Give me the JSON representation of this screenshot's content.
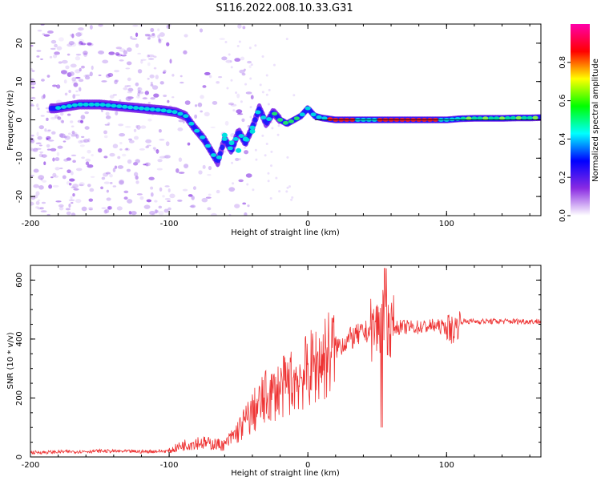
{
  "title": "S116.2022.008.10.33.G31",
  "chart_data": [
    {
      "type": "heatmap",
      "xlabel": "Height of straight line (km)",
      "ylabel": "Frequency (Hz)",
      "xlim": [
        -200,
        168
      ],
      "ylim": [
        -25,
        25
      ],
      "x_ticks": [
        -200,
        -100,
        0,
        100
      ],
      "y_ticks": [
        -20,
        -10,
        0,
        10,
        20
      ],
      "colorbar": {
        "label": "Normalized spectral amplitude",
        "range": [
          0,
          1
        ],
        "ticks": [
          "0.0",
          "0.2",
          "0.4",
          "0.6",
          "0.8"
        ],
        "colors": [
          "#ffffff",
          "#8a2be2",
          "#0000ff",
          "#00ffff",
          "#00ff00",
          "#ffff00",
          "#ff0000",
          "#ff00aa"
        ]
      },
      "trace": {
        "description_points_x": [
          -182,
          -165,
          -150,
          -135,
          -120,
          -105,
          -95,
          -88,
          -82,
          -75,
          -70,
          -65,
          -60,
          -55,
          -50,
          -45,
          -40,
          -35,
          -30,
          -25,
          -20,
          -15,
          -10,
          -5,
          0,
          5,
          10,
          20,
          30,
          40,
          50,
          60,
          70,
          80,
          90,
          100,
          110,
          120,
          130,
          140,
          150,
          160,
          168
        ],
        "description_points_y": [
          3,
          4,
          4,
          3.5,
          3,
          2.5,
          2,
          1,
          -2,
          -5,
          -8,
          -11,
          -5,
          -8,
          -3,
          -6,
          -2,
          3,
          -1,
          2,
          0,
          -1,
          0,
          1,
          3,
          1,
          0.5,
          0,
          0,
          0,
          0,
          0,
          0,
          0,
          0,
          0,
          0.3,
          0.4,
          0.4,
          0.4,
          0.5,
          0.5,
          0.6
        ]
      }
    },
    {
      "type": "line",
      "xlabel": "Height of straight line (km)",
      "ylabel": "SNR (10 * v/v)",
      "xlim": [
        -200,
        168
      ],
      "ylim": [
        0,
        650
      ],
      "x_ticks": [
        -200,
        -100,
        0,
        100
      ],
      "y_ticks": [
        0,
        200,
        400,
        600
      ],
      "color": "#ee3333",
      "envelope_x": [
        -200,
        -150,
        -120,
        -100,
        -90,
        -80,
        -70,
        -60,
        -50,
        -40,
        -30,
        -20,
        -10,
        0,
        10,
        20,
        30,
        40,
        50,
        55,
        60,
        70,
        80,
        90,
        100,
        105,
        110,
        120,
        140,
        168
      ],
      "envelope_y": [
        15,
        20,
        18,
        20,
        40,
        50,
        45,
        40,
        90,
        150,
        200,
        230,
        260,
        290,
        330,
        370,
        400,
        420,
        440,
        460,
        440,
        440,
        440,
        445,
        440,
        430,
        460,
        460,
        460,
        460
      ]
    }
  ]
}
